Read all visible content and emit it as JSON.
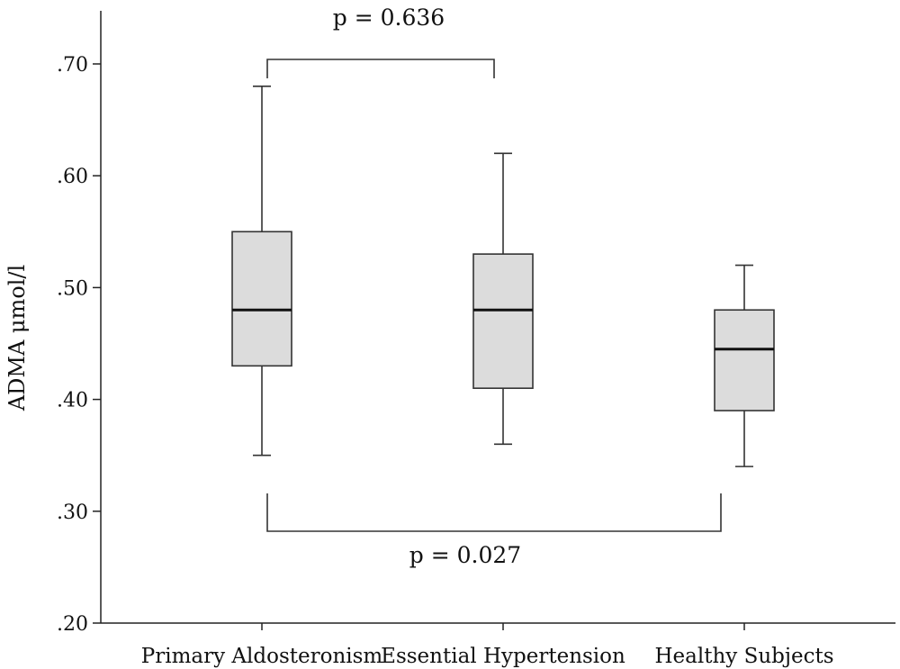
{
  "chart_data": {
    "type": "boxplot",
    "ylabel": "ADMA μmol/l",
    "ylim": [
      0.2,
      0.75
    ],
    "yticks": [
      {
        "value": 0.2,
        "label": ".20"
      },
      {
        "value": 0.3,
        "label": ".30"
      },
      {
        "value": 0.4,
        "label": ".40"
      },
      {
        "value": 0.5,
        "label": ".50"
      },
      {
        "value": 0.6,
        "label": ".60"
      },
      {
        "value": 0.7,
        "label": ".70"
      }
    ],
    "categories": [
      "Primary Aldosteronism",
      "Essential Hypertension",
      "Healthy Subjects"
    ],
    "boxes": [
      {
        "category": "Primary Aldosteronism",
        "min": 0.35,
        "q1": 0.43,
        "median": 0.48,
        "q3": 0.55,
        "max": 0.68
      },
      {
        "category": "Essential Hypertension",
        "min": 0.36,
        "q1": 0.41,
        "median": 0.48,
        "q3": 0.53,
        "max": 0.62
      },
      {
        "category": "Healthy Subjects",
        "min": 0.34,
        "q1": 0.39,
        "median": 0.445,
        "q3": 0.48,
        "max": 0.52
      }
    ],
    "comparisons": [
      {
        "from": "Primary Aldosteronism",
        "to": "Essential Hypertension",
        "label": "p = 0.636",
        "side": "top"
      },
      {
        "from": "Primary Aldosteronism",
        "to": "Healthy Subjects",
        "label": "p = 0.027",
        "side": "bottom"
      }
    ],
    "grid": false
  }
}
